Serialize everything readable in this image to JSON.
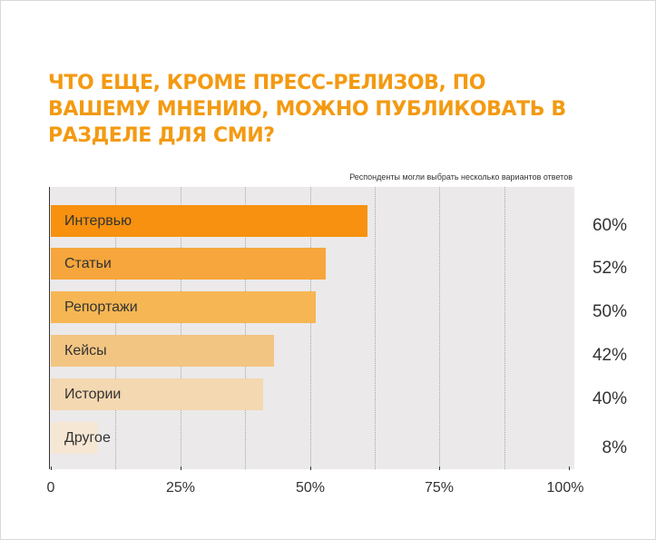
{
  "title": "Что еще, кроме пресс-релизов, по вашему мнению, можно публиковать в разделе для СМИ?",
  "note": "Респонденты могли выбрать несколько вариантов ответов",
  "chart_data": {
    "type": "bar",
    "orientation": "horizontal",
    "title": "Что еще, кроме пресс-релизов, по вашему мнению, можно публиковать в разделе для СМИ?",
    "categories": [
      "Интервью",
      "Статьи",
      "Репортажи",
      "Кейсы",
      "Истории",
      "Другое"
    ],
    "values": [
      60,
      52,
      50,
      42,
      40,
      8
    ],
    "value_labels": [
      "60%",
      "52%",
      "50%",
      "42%",
      "40%",
      "8%"
    ],
    "bar_colors": [
      "#f7910f",
      "#f6a63c",
      "#f6b653",
      "#f3c582",
      "#f3d8b1",
      "#f6e7d5"
    ],
    "xlim": [
      0,
      100
    ],
    "x_ticks": [
      0,
      25,
      50,
      75,
      100
    ],
    "x_tick_labels": [
      "0",
      "25%",
      "50%",
      "75%",
      "100%"
    ],
    "grid": "vertical dotted",
    "legend": "none"
  }
}
